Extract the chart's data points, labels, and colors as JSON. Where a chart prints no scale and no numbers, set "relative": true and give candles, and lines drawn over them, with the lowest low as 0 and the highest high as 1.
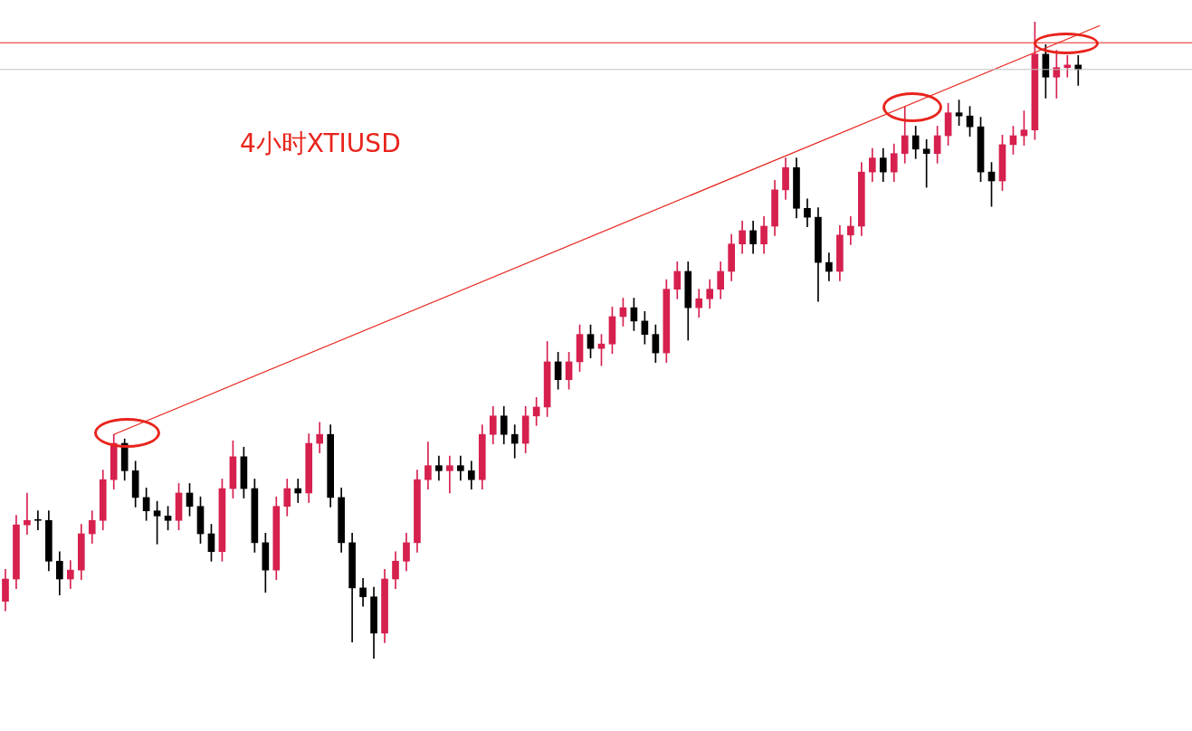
{
  "chart_data": {
    "type": "candlestick",
    "title": "4小时XTIUSD",
    "relative": true,
    "categories": [
      null,
      null,
      null,
      null,
      null,
      null,
      null,
      null,
      null,
      null,
      null,
      null,
      null,
      null,
      null,
      null,
      null,
      null,
      null,
      null,
      null,
      null,
      null,
      null,
      null,
      null,
      null,
      null,
      null,
      null,
      null,
      null,
      null,
      null,
      null,
      null,
      null,
      null,
      null,
      null,
      null,
      null,
      null,
      null,
      null,
      null,
      null,
      null,
      null,
      null,
      null,
      null,
      null,
      null,
      null,
      null,
      null,
      null,
      null,
      null,
      null,
      null,
      null,
      null,
      null,
      null,
      null,
      null,
      null,
      null,
      null,
      null,
      null,
      null,
      null,
      null,
      null,
      null,
      null,
      null,
      null,
      null,
      null,
      null,
      null,
      null,
      null,
      null,
      null,
      null,
      null,
      null,
      null,
      null,
      null,
      null,
      null,
      null,
      null,
      null,
      null,
      null,
      null,
      null,
      null,
      null,
      null,
      null,
      null,
      null
    ],
    "ohlc": [
      [
        0.09,
        0.14,
        0.075,
        0.125
      ],
      [
        0.125,
        0.225,
        0.11,
        0.21
      ],
      [
        0.21,
        0.26,
        0.195,
        0.217
      ],
      [
        0.217,
        0.232,
        0.202,
        0.217
      ],
      [
        0.217,
        0.232,
        0.138,
        0.153
      ],
      [
        0.153,
        0.168,
        0.1,
        0.125
      ],
      [
        0.125,
        0.154,
        0.11,
        0.139
      ],
      [
        0.139,
        0.211,
        0.124,
        0.196
      ],
      [
        0.196,
        0.232,
        0.181,
        0.217
      ],
      [
        0.217,
        0.296,
        0.202,
        0.281
      ],
      [
        0.281,
        0.352,
        0.266,
        0.338
      ],
      [
        0.338,
        0.345,
        0.28,
        0.295
      ],
      [
        0.295,
        0.31,
        0.238,
        0.253
      ],
      [
        0.253,
        0.268,
        0.217,
        0.232
      ],
      [
        0.232,
        0.247,
        0.18,
        0.224
      ],
      [
        0.224,
        0.239,
        0.202,
        0.217
      ],
      [
        0.217,
        0.275,
        0.202,
        0.26
      ],
      [
        0.26,
        0.275,
        0.224,
        0.239
      ],
      [
        0.239,
        0.254,
        0.181,
        0.196
      ],
      [
        0.196,
        0.211,
        0.153,
        0.168
      ],
      [
        0.168,
        0.282,
        0.153,
        0.267
      ],
      [
        0.267,
        0.342,
        0.252,
        0.317
      ],
      [
        0.317,
        0.332,
        0.252,
        0.267
      ],
      [
        0.267,
        0.282,
        0.167,
        0.182
      ],
      [
        0.182,
        0.197,
        0.104,
        0.139
      ],
      [
        0.139,
        0.254,
        0.124,
        0.239
      ],
      [
        0.239,
        0.282,
        0.224,
        0.267
      ],
      [
        0.267,
        0.282,
        0.245,
        0.26
      ],
      [
        0.26,
        0.353,
        0.245,
        0.338
      ],
      [
        0.338,
        0.371,
        0.323,
        0.352
      ],
      [
        0.352,
        0.367,
        0.238,
        0.253
      ],
      [
        0.253,
        0.268,
        0.167,
        0.182
      ],
      [
        0.182,
        0.197,
        0.026,
        0.111
      ],
      [
        0.111,
        0.126,
        0.082,
        0.097
      ],
      [
        0.097,
        0.112,
        0,
        0.04
      ],
      [
        0.04,
        0.14,
        0.025,
        0.125
      ],
      [
        0.125,
        0.168,
        0.11,
        0.153
      ],
      [
        0.153,
        0.197,
        0.138,
        0.182
      ],
      [
        0.182,
        0.296,
        0.167,
        0.281
      ],
      [
        0.281,
        0.34,
        0.266,
        0.303
      ],
      [
        0.303,
        0.318,
        0.28,
        0.295
      ],
      [
        0.295,
        0.318,
        0.26,
        0.303
      ],
      [
        0.303,
        0.318,
        0.28,
        0.295
      ],
      [
        0.295,
        0.31,
        0.266,
        0.281
      ],
      [
        0.281,
        0.367,
        0.266,
        0.352
      ],
      [
        0.352,
        0.396,
        0.337,
        0.381
      ],
      [
        0.381,
        0.396,
        0.337,
        0.352
      ],
      [
        0.352,
        0.367,
        0.315,
        0.338
      ],
      [
        0.338,
        0.396,
        0.323,
        0.381
      ],
      [
        0.381,
        0.41,
        0.366,
        0.395
      ],
      [
        0.395,
        0.498,
        0.38,
        0.466
      ],
      [
        0.466,
        0.481,
        0.423,
        0.438
      ],
      [
        0.438,
        0.481,
        0.423,
        0.466
      ],
      [
        0.466,
        0.524,
        0.451,
        0.509
      ],
      [
        0.509,
        0.524,
        0.472,
        0.487
      ],
      [
        0.487,
        0.509,
        0.46,
        0.494
      ],
      [
        0.494,
        0.552,
        0.479,
        0.537
      ],
      [
        0.537,
        0.566,
        0.522,
        0.551
      ],
      [
        0.551,
        0.566,
        0.515,
        0.53
      ],
      [
        0.53,
        0.545,
        0.494,
        0.509
      ],
      [
        0.509,
        0.524,
        0.465,
        0.48
      ],
      [
        0.48,
        0.595,
        0.465,
        0.58
      ],
      [
        0.58,
        0.623,
        0.565,
        0.608
      ],
      [
        0.608,
        0.623,
        0.5,
        0.551
      ],
      [
        0.551,
        0.58,
        0.536,
        0.565
      ],
      [
        0.565,
        0.595,
        0.55,
        0.58
      ],
      [
        0.58,
        0.623,
        0.565,
        0.608
      ],
      [
        0.608,
        0.666,
        0.593,
        0.651
      ],
      [
        0.651,
        0.687,
        0.636,
        0.672
      ],
      [
        0.672,
        0.687,
        0.636,
        0.651
      ],
      [
        0.651,
        0.694,
        0.636,
        0.679
      ],
      [
        0.679,
        0.751,
        0.664,
        0.736
      ],
      [
        0.736,
        0.786,
        0.721,
        0.771
      ],
      [
        0.771,
        0.786,
        0.692,
        0.707
      ],
      [
        0.707,
        0.722,
        0.678,
        0.693
      ],
      [
        0.693,
        0.708,
        0.561,
        0.622
      ],
      [
        0.622,
        0.637,
        0.593,
        0.608
      ],
      [
        0.608,
        0.68,
        0.593,
        0.665
      ],
      [
        0.665,
        0.694,
        0.65,
        0.679
      ],
      [
        0.679,
        0.779,
        0.664,
        0.764
      ],
      [
        0.764,
        0.801,
        0.749,
        0.786
      ],
      [
        0.786,
        0.801,
        0.749,
        0.764
      ],
      [
        0.764,
        0.808,
        0.749,
        0.793
      ],
      [
        0.793,
        0.866,
        0.778,
        0.821
      ],
      [
        0.821,
        0.836,
        0.785,
        0.8
      ],
      [
        0.8,
        0.815,
        0.74,
        0.793
      ],
      [
        0.793,
        0.836,
        0.778,
        0.821
      ],
      [
        0.821,
        0.872,
        0.806,
        0.857
      ],
      [
        0.857,
        0.877,
        0.837,
        0.852
      ],
      [
        0.852,
        0.867,
        0.82,
        0.835
      ],
      [
        0.835,
        0.85,
        0.749,
        0.764
      ],
      [
        0.764,
        0.779,
        0.71,
        0.75
      ],
      [
        0.75,
        0.822,
        0.735,
        0.807
      ],
      [
        0.807,
        0.836,
        0.792,
        0.821
      ],
      [
        0.821,
        0.86,
        0.806,
        0.83
      ],
      [
        0.83,
        1,
        0.815,
        0.949
      ],
      [
        0.949,
        0.964,
        0.88,
        0.913
      ],
      [
        0.913,
        0.955,
        0.88,
        0.928
      ],
      [
        0.928,
        0.947,
        0.913,
        0.932
      ],
      [
        0.932,
        0.947,
        0.9,
        0.925
      ],
      null,
      null,
      null,
      null,
      null,
      null,
      null,
      null,
      null,
      null
    ],
    "colors": [
      "#d6204e",
      "#d6204e",
      "#d6204e",
      "#000000",
      "#000000",
      "#000000",
      "#d6204e",
      "#d6204e",
      "#d6204e",
      "#d6204e",
      "#d6204e",
      "#000000",
      "#000000",
      "#000000",
      "#000000",
      "#000000",
      "#d6204e",
      "#000000",
      "#000000",
      "#000000",
      "#d6204e",
      "#d6204e",
      "#000000",
      "#000000",
      "#000000",
      "#d6204e",
      "#d6204e",
      "#000000",
      "#d6204e",
      "#d6204e",
      "#000000",
      "#000000",
      "#000000",
      "#000000",
      "#000000",
      "#d6204e",
      "#d6204e",
      "#d6204e",
      "#d6204e",
      "#d6204e",
      "#000000",
      "#d6204e",
      "#000000",
      "#000000",
      "#d6204e",
      "#d6204e",
      "#000000",
      "#000000",
      "#d6204e",
      "#d6204e",
      "#d6204e",
      "#000000",
      "#d6204e",
      "#d6204e",
      "#000000",
      "#d6204e",
      "#d6204e",
      "#d6204e",
      "#000000",
      "#000000",
      "#000000",
      "#d6204e",
      "#d6204e",
      "#000000",
      "#d6204e",
      "#d6204e",
      "#d6204e",
      "#d6204e",
      "#d6204e",
      "#000000",
      "#d6204e",
      "#d6204e",
      "#d6204e",
      "#000000",
      "#000000",
      "#000000",
      "#000000",
      "#d6204e",
      "#d6204e",
      "#d6204e",
      "#d6204e",
      "#000000",
      "#d6204e",
      "#d6204e",
      "#000000",
      "#000000",
      "#d6204e",
      "#d6204e",
      "#000000",
      "#000000",
      "#000000",
      "#000000",
      "#d6204e",
      "#d6204e",
      "#d6204e",
      "#d6204e",
      "#000000",
      "#d6204e",
      "#d6204e",
      "#000000",
      null,
      null,
      null,
      null,
      null,
      null,
      null,
      null,
      null,
      null
    ],
    "series": [
      {
        "type": "line",
        "color": "#e8241c",
        "values": [
          null,
          null,
          null,
          null,
          null,
          null,
          null,
          null,
          null,
          null,
          0.352,
          null,
          null,
          null,
          null,
          null,
          null,
          null,
          null,
          null,
          null,
          null,
          null,
          null,
          null,
          null,
          null,
          null,
          null,
          null,
          null,
          null,
          null,
          null,
          null,
          null,
          null,
          null,
          null,
          null,
          null,
          null,
          null,
          null,
          null,
          null,
          null,
          null,
          null,
          null,
          null,
          null,
          null,
          null,
          null,
          null,
          null,
          null,
          null,
          null,
          null,
          null,
          null,
          null,
          null,
          null,
          null,
          null,
          null,
          null,
          null,
          null,
          null,
          null,
          null,
          null,
          null,
          null,
          null,
          null,
          null,
          null,
          null,
          null,
          null,
          null,
          null,
          null,
          null,
          null,
          null,
          null,
          null,
          null,
          null,
          null,
          null,
          null,
          null,
          null,
          null,
          0.994,
          null,
          null,
          null,
          null,
          null,
          null,
          null,
          null
        ]
      }
    ],
    "ref_lines": [
      {
        "axis": "y",
        "value": 0.967,
        "color": "#e8241c"
      },
      {
        "axis": "y",
        "value": 0.925,
        "color": "#c0c0c0"
      }
    ]
  }
}
